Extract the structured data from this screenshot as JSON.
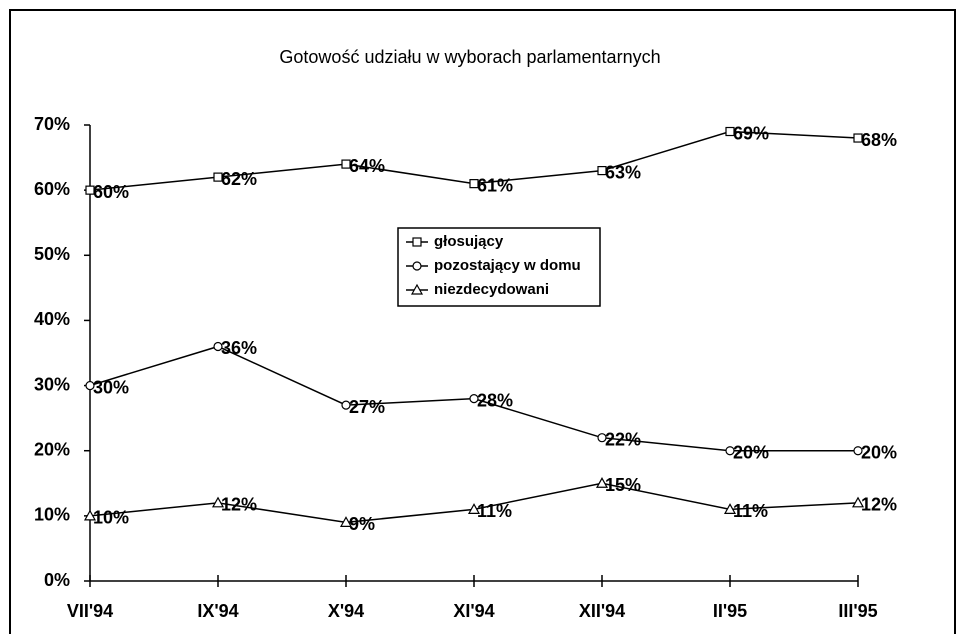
{
  "chart_data": {
    "type": "line",
    "title": "Gotowość udziału w wyborach parlamentarnych",
    "categories": [
      "VII'94",
      "IX'94",
      "X'94",
      "XI'94",
      "XII'94",
      "II'95",
      "III'95"
    ],
    "series": [
      {
        "name": "głosujący",
        "color": "#000000",
        "marker": "square",
        "values": [
          60,
          62,
          64,
          61,
          63,
          69,
          68
        ],
        "value_labels": [
          "60%",
          "62%",
          "64%",
          "61%",
          "63%",
          "69%",
          "68%"
        ]
      },
      {
        "name": "pozostający w domu",
        "color": "#000000",
        "marker": "circle",
        "values": [
          30,
          36,
          27,
          28,
          22,
          20,
          20
        ],
        "value_labels": [
          "30%",
          "36%",
          "27%",
          "28%",
          "22%",
          "20%",
          "20%"
        ]
      },
      {
        "name": "niezdecydowani",
        "color": "#000000",
        "marker": "triangle",
        "values": [
          10,
          12,
          9,
          11,
          15,
          11,
          12
        ],
        "value_labels": [
          "10%",
          "12%",
          "9%",
          "11%",
          "15%",
          "11%",
          "12%"
        ]
      }
    ],
    "ylim": [
      0,
      70
    ],
    "yticks": [
      {
        "value": 0,
        "label": "0%"
      },
      {
        "value": 10,
        "label": "10%"
      },
      {
        "value": 20,
        "label": "20%"
      },
      {
        "value": 30,
        "label": "30%"
      },
      {
        "value": 40,
        "label": "40%"
      },
      {
        "value": 50,
        "label": "50%"
      },
      {
        "value": 60,
        "label": "60%"
      },
      {
        "value": 70,
        "label": "70%"
      }
    ],
    "grid": false,
    "legend": "center"
  }
}
